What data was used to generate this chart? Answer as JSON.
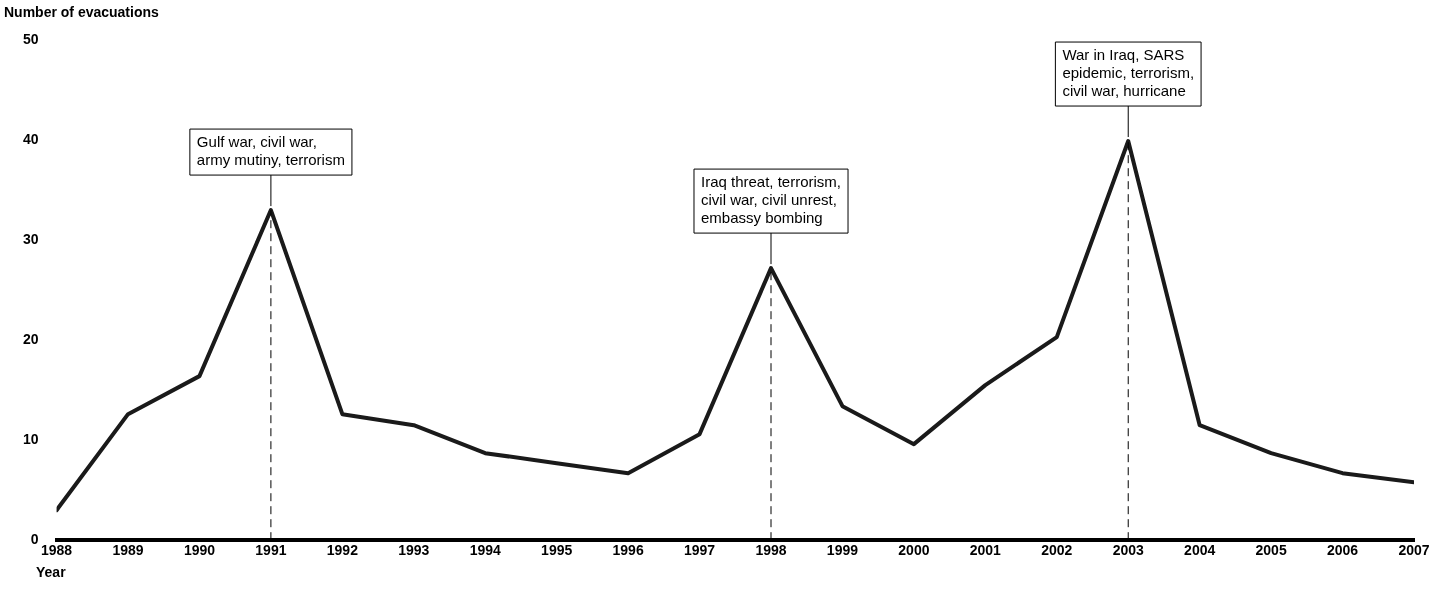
{
  "chart_data": {
    "type": "line",
    "xlabel": "Year",
    "ylabel": "Number of evacuations",
    "x": [
      1988,
      1989,
      1990,
      1991,
      1992,
      1993,
      1994,
      1995,
      1996,
      1997,
      1998,
      1999,
      2000,
      2001,
      2002,
      2003,
      2004,
      2005,
      2006,
      2007
    ],
    "series": [
      {
        "color": "#1a1a1a",
        "values": [
          3,
          12.6,
          16.4,
          33,
          12.6,
          11.5,
          8.7,
          7.7,
          6.7,
          10.6,
          27.2,
          13.4,
          9.6,
          15.5,
          20.3,
          39.9,
          11.5,
          8.7,
          6.7,
          5.8
        ]
      }
    ],
    "xlim": [
      1988,
      2007
    ],
    "xticks": [
      1988,
      1989,
      1990,
      1991,
      1992,
      1993,
      1994,
      1995,
      1996,
      1997,
      1998,
      1999,
      2000,
      2001,
      2002,
      2003,
      2004,
      2005,
      2006,
      2007
    ],
    "ylim": [
      0,
      50
    ],
    "yticks": [
      0,
      10,
      20,
      30,
      40,
      50
    ],
    "ref_lines": [
      {
        "axis": "x",
        "value": 1991,
        "line_style": "dashed"
      },
      {
        "axis": "x",
        "value": 1998,
        "line_style": "dashed"
      },
      {
        "axis": "x",
        "value": 2003,
        "line_style": "dashed"
      }
    ],
    "grid": false,
    "legend": false,
    "marker": "none",
    "line_style": "solid",
    "annotations": [
      {
        "text": "Gulf war, civil war,\narmy mutiny, terrorism",
        "x": 1991,
        "y": 33
      },
      {
        "text": "Iraq threat, terrorism,\ncivil war, civil unrest,\nembassy bombing",
        "x": 1998,
        "y": 27.2
      },
      {
        "text": "War in Iraq, SARS\nepidemic, terrorism,\ncivil war, hurricane",
        "x": 2003,
        "y": 39.9
      }
    ]
  }
}
